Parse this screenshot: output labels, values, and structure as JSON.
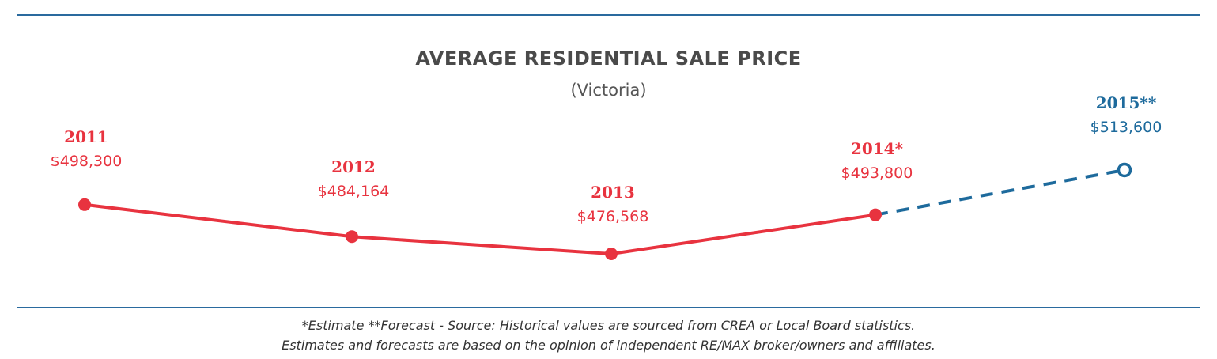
{
  "chart_data": {
    "type": "line",
    "title": "AVERAGE RESIDENTIAL SALE PRICE",
    "subtitle": "(Victoria)",
    "points": [
      {
        "year": "2011",
        "value": 498300,
        "label": "$498,300",
        "kind": "actual",
        "color": "#e8333f"
      },
      {
        "year": "2012",
        "value": 484164,
        "label": "$484,164",
        "kind": "actual",
        "color": "#e8333f"
      },
      {
        "year": "2013",
        "value": 476568,
        "label": "$476,568",
        "kind": "actual",
        "color": "#e8333f"
      },
      {
        "year": "2014*",
        "value": 493800,
        "label": "$493,800",
        "kind": "estimate",
        "color": "#e8333f"
      },
      {
        "year": "2015**",
        "value": 513600,
        "label": "$513,600",
        "kind": "forecast",
        "color": "#1d6a9c"
      }
    ],
    "colors": {
      "actual": "#e8333f",
      "forecast": "#1d6a9c",
      "rule": "#2a6a9e"
    },
    "grid": false,
    "legend": "none"
  },
  "footnotes": [
    "*Estimate **Forecast - Source: Historical values are sourced from CREA or Local Board statistics.",
    "Estimates and forecasts are based on the opinion of independent RE/MAX broker/owners and affiliates."
  ]
}
